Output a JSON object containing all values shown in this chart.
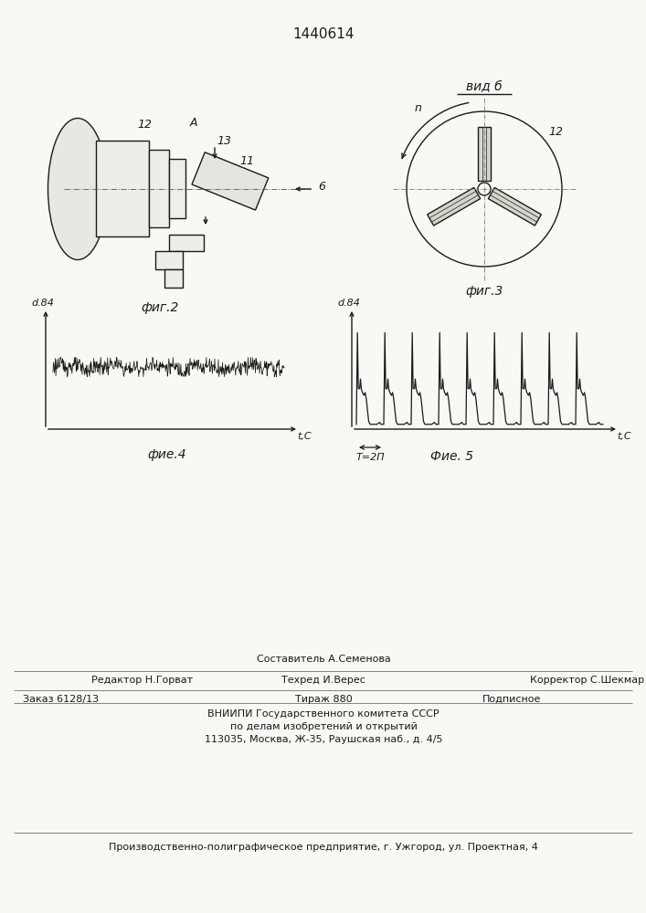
{
  "patent_number": "1440614",
  "background_color": "#f8f8f4",
  "line_color": "#1a1a1a",
  "fig2_label": "фиг.2",
  "fig3_label": "фиг.3",
  "fig4_label": "фие.4",
  "fig5_label": "Фие. 5",
  "vid_b_label": "вид б",
  "label_12_left": "12",
  "label_12_right": "12",
  "label_11": "11",
  "label_13": "13",
  "label_6": "6",
  "label_A": "А",
  "label_n": "n",
  "label_dvy_left": "d.84",
  "label_dvy_right": "d.84",
  "label_tc_left": "t,C",
  "label_tc_right": "t,C",
  "label_T2pi": "T=2Π",
  "footer_line0_center": "Составитель А.Семенова",
  "footer_line1_left": "Редактор Н.Горват",
  "footer_line1_center": "Техред И.Верес",
  "footer_line1_right": "Корректор С.Шекмар",
  "footer_line2_left": "Заказ 6128/13",
  "footer_line2_center": "Тираж 880",
  "footer_line2_right": "Подписное",
  "footer_line3": "ВНИИПИ Государственного комитета СССР",
  "footer_line4": "по делам изобретений и открытий",
  "footer_line5": "113035, Москва, Ж-35, Раушская наб., д. 4/5",
  "footer_line6": "Производственно-полиграфическое предприятие, г. Ужгород, ул. Проектная, 4"
}
